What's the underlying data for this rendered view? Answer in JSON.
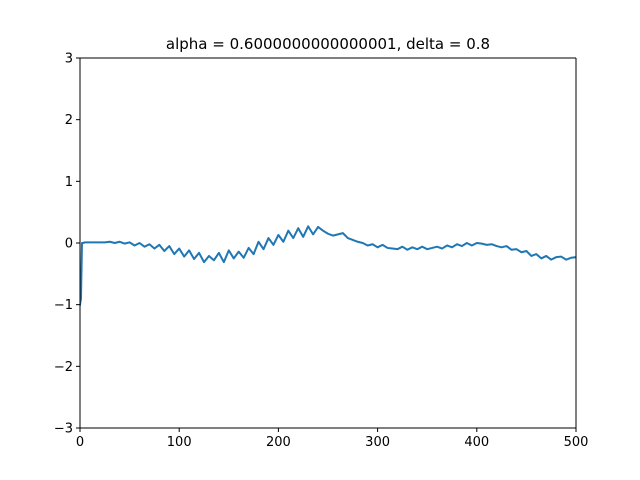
{
  "chart_data": {
    "type": "line",
    "title": "alpha = 0.6000000000000001, delta = 0.8",
    "xlabel": "",
    "ylabel": "",
    "xlim": [
      0,
      500
    ],
    "ylim": [
      -3,
      3
    ],
    "xticks": [
      0,
      100,
      200,
      300,
      400,
      500
    ],
    "yticks": [
      -3,
      -2,
      -1,
      0,
      1,
      2,
      3
    ],
    "xtick_labels": [
      "0",
      "100",
      "200",
      "300",
      "400",
      "500"
    ],
    "ytick_labels": [
      "−3",
      "−2",
      "−1",
      "0",
      "1",
      "2",
      "3"
    ],
    "grid": false,
    "legend": "none",
    "series": [
      {
        "color": "#1f77b4",
        "x": [
          0,
          1,
          2,
          3,
          5,
          10,
          15,
          20,
          25,
          30,
          35,
          40,
          45,
          50,
          55,
          60,
          65,
          70,
          75,
          80,
          85,
          90,
          95,
          100,
          105,
          110,
          115,
          120,
          125,
          130,
          135,
          140,
          145,
          150,
          155,
          160,
          165,
          170,
          175,
          180,
          185,
          190,
          195,
          200,
          205,
          210,
          215,
          220,
          225,
          230,
          235,
          240,
          245,
          250,
          255,
          260,
          265,
          270,
          275,
          280,
          285,
          290,
          295,
          300,
          305,
          310,
          315,
          320,
          325,
          330,
          335,
          340,
          345,
          350,
          355,
          360,
          365,
          370,
          375,
          380,
          385,
          390,
          395,
          400,
          405,
          410,
          415,
          420,
          425,
          430,
          435,
          440,
          445,
          450,
          455,
          460,
          465,
          470,
          475,
          480,
          485,
          490,
          495,
          500
        ],
        "y": [
          -1.0,
          -0.9,
          0.0,
          0.0,
          0.01,
          0.01,
          0.01,
          0.01,
          0.01,
          0.02,
          0.0,
          0.02,
          -0.01,
          0.01,
          -0.04,
          0.0,
          -0.06,
          -0.02,
          -0.09,
          -0.03,
          -0.13,
          -0.05,
          -0.18,
          -0.09,
          -0.22,
          -0.12,
          -0.26,
          -0.16,
          -0.31,
          -0.21,
          -0.28,
          -0.16,
          -0.31,
          -0.12,
          -0.25,
          -0.14,
          -0.24,
          -0.08,
          -0.18,
          0.02,
          -0.1,
          0.08,
          -0.03,
          0.13,
          0.02,
          0.2,
          0.08,
          0.24,
          0.1,
          0.27,
          0.14,
          0.26,
          0.2,
          0.15,
          0.12,
          0.14,
          0.16,
          0.08,
          0.05,
          0.02,
          0.0,
          -0.04,
          -0.02,
          -0.07,
          -0.03,
          -0.08,
          -0.09,
          -0.1,
          -0.06,
          -0.11,
          -0.07,
          -0.1,
          -0.06,
          -0.1,
          -0.08,
          -0.06,
          -0.09,
          -0.04,
          -0.07,
          -0.02,
          -0.05,
          0.0,
          -0.04,
          0.0,
          -0.01,
          -0.03,
          -0.02,
          -0.05,
          -0.07,
          -0.05,
          -0.11,
          -0.1,
          -0.15,
          -0.13,
          -0.21,
          -0.18,
          -0.25,
          -0.21,
          -0.27,
          -0.23,
          -0.22,
          -0.27,
          -0.24,
          -0.23
        ]
      }
    ]
  }
}
